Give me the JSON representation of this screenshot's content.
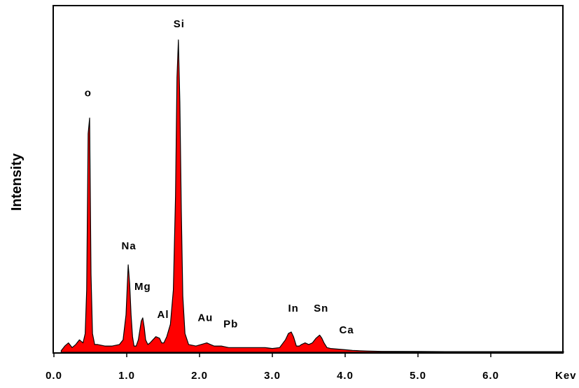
{
  "chart_data": {
    "type": "area",
    "title": "",
    "xlabel": "Kev",
    "ylabel": "Intensity",
    "xlim": [
      0,
      7.0
    ],
    "ylim": [
      0,
      100
    ],
    "grid": false,
    "fill_color": "#ff0000",
    "line_color": "#000000",
    "x_ticks": [
      {
        "value": 0,
        "label": "0.0"
      },
      {
        "value": 1,
        "label": "1.0"
      },
      {
        "value": 2,
        "label": "2.0"
      },
      {
        "value": 3,
        "label": "3.0"
      },
      {
        "value": 4,
        "label": "4.0"
      },
      {
        "value": 5,
        "label": "5.0"
      },
      {
        "value": 6,
        "label": "6.0"
      }
    ],
    "series": [
      {
        "x": [
          0.1,
          0.15,
          0.2,
          0.25,
          0.3,
          0.35,
          0.4,
          0.43,
          0.45,
          0.47,
          0.49,
          0.51,
          0.53,
          0.56,
          0.6,
          0.7,
          0.8,
          0.9,
          0.95,
          0.99,
          1.02,
          1.04,
          1.06,
          1.08,
          1.1,
          1.13,
          1.16,
          1.2,
          1.22,
          1.24,
          1.26,
          1.29,
          1.32,
          1.36,
          1.4,
          1.45,
          1.48,
          1.51,
          1.55,
          1.6,
          1.64,
          1.67,
          1.69,
          1.71,
          1.73,
          1.75,
          1.77,
          1.8,
          1.85,
          1.95,
          2.1,
          2.15,
          2.2,
          2.3,
          2.4,
          2.5,
          2.6,
          2.7,
          2.8,
          2.9,
          3.0,
          3.1,
          3.18,
          3.22,
          3.26,
          3.29,
          3.33,
          3.37,
          3.4,
          3.45,
          3.5,
          3.55,
          3.6,
          3.65,
          3.68,
          3.71,
          3.75,
          3.8,
          3.9,
          4.0,
          4.1,
          4.2,
          4.3,
          4.5,
          5.0,
          5.5,
          6.0,
          6.5,
          7.0
        ],
        "y": [
          0.5,
          2,
          3,
          1.5,
          2.5,
          4,
          3,
          6,
          20,
          70,
          75,
          25,
          6,
          2.5,
          2.5,
          2,
          2,
          2.5,
          4,
          12,
          28,
          22,
          12,
          5,
          2,
          2,
          4,
          10,
          11,
          8,
          4,
          2.5,
          3,
          4,
          5,
          4.5,
          3,
          3,
          5,
          9,
          20,
          50,
          88,
          100,
          80,
          45,
          18,
          6,
          2.5,
          2,
          3,
          2.5,
          2,
          2,
          1.5,
          1.5,
          1.5,
          1.5,
          1.5,
          1.5,
          1.2,
          1.5,
          4,
          6,
          6.5,
          5,
          2,
          2,
          2.5,
          3,
          2.5,
          3,
          4.5,
          5.5,
          4.5,
          3,
          1.5,
          1.2,
          1,
          0.8,
          0.6,
          0.5,
          0.4,
          0.3,
          0.25,
          0.2,
          0.2,
          0.2,
          0.2
        ]
      }
    ],
    "annotations": [
      {
        "text": "o",
        "x": 0.47,
        "y": 82
      },
      {
        "text": "Si",
        "x": 1.72,
        "y": 104
      },
      {
        "text": "Na",
        "x": 1.03,
        "y": 33
      },
      {
        "text": "Mg",
        "x": 1.22,
        "y": 20
      },
      {
        "text": "Al",
        "x": 1.5,
        "y": 11
      },
      {
        "text": "Au",
        "x": 2.08,
        "y": 10
      },
      {
        "text": "Pb",
        "x": 2.43,
        "y": 8
      },
      {
        "text": "In",
        "x": 3.29,
        "y": 13
      },
      {
        "text": "Sn",
        "x": 3.67,
        "y": 13
      },
      {
        "text": "Ca",
        "x": 4.02,
        "y": 6
      }
    ]
  }
}
